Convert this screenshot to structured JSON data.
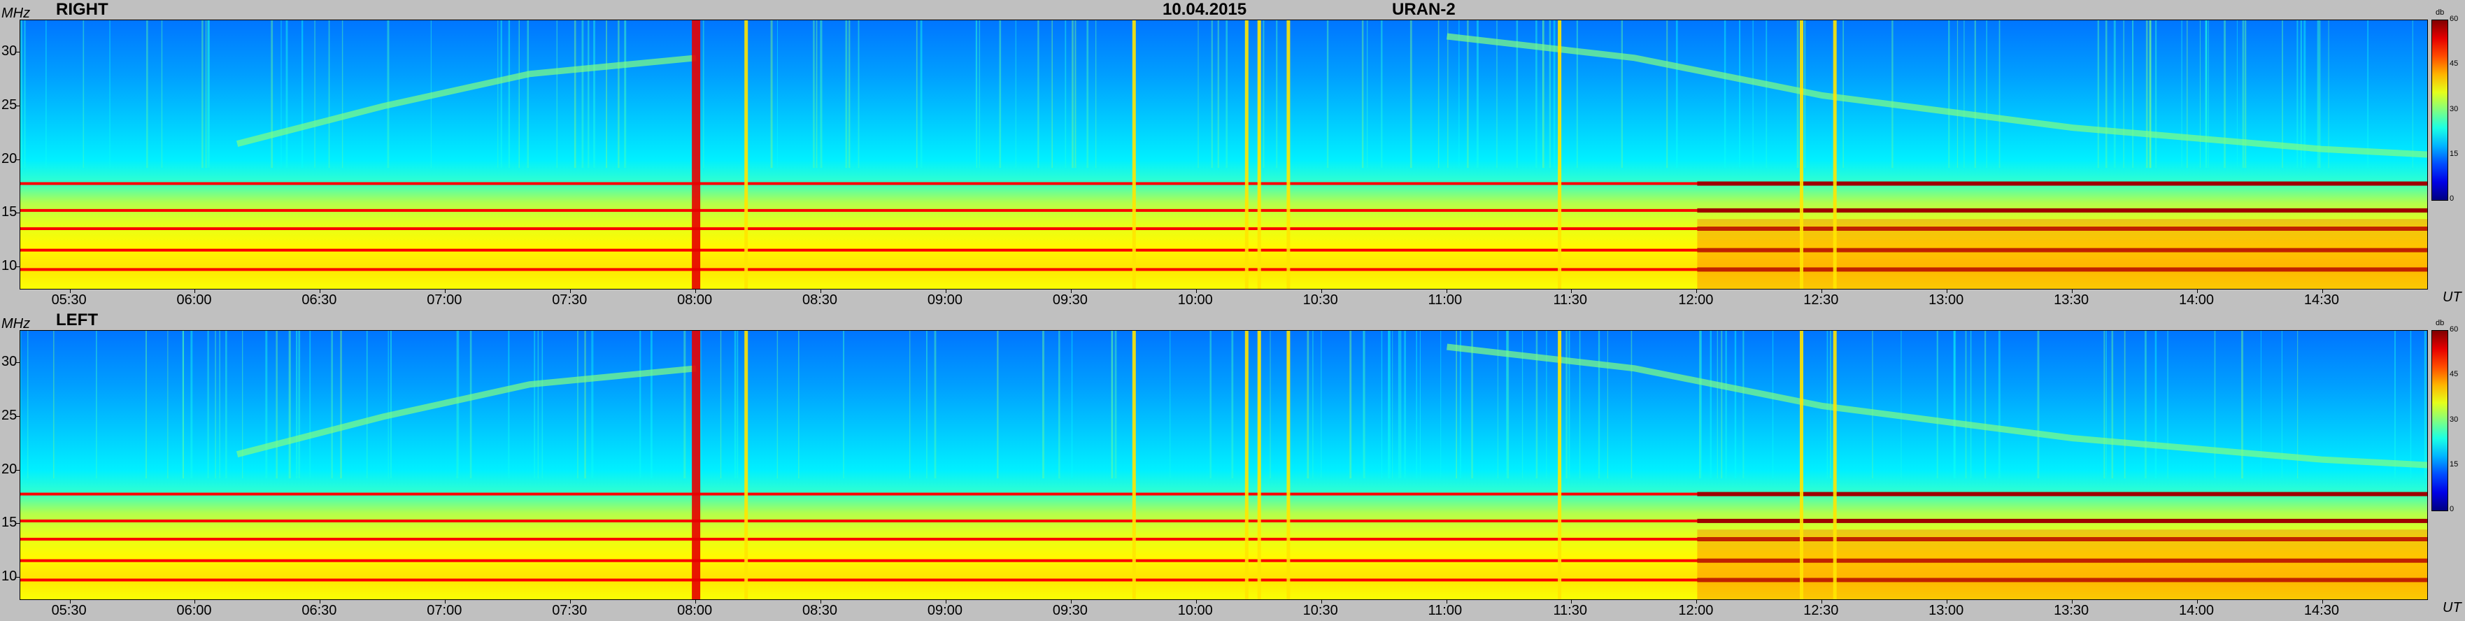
{
  "header": {
    "date": "10.04.2015",
    "station": "URAN-2"
  },
  "axes": {
    "y_unit": "MHz",
    "x_unit": "UT",
    "colorbar_unit": "db"
  },
  "chart_data": [
    {
      "type": "heatmap",
      "title": "RIGHT",
      "xlabel": "UT",
      "ylabel": "MHz",
      "x_range": [
        "05:18",
        "14:55"
      ],
      "x_ticks": [
        "05:30",
        "06:00",
        "06:30",
        "07:00",
        "07:30",
        "08:00",
        "08:30",
        "09:00",
        "09:30",
        "10:00",
        "10:30",
        "11:00",
        "11:30",
        "12:00",
        "12:30",
        "13:00",
        "13:30",
        "14:00",
        "14:30"
      ],
      "ylim": [
        8,
        33
      ],
      "y_ticks": [
        10,
        15,
        20,
        25,
        30
      ],
      "colorbar": {
        "label": "db",
        "range": [
          0,
          60
        ],
        "ticks": [
          0,
          15,
          30,
          45,
          60
        ]
      },
      "strong_bands_mhz": [
        9.8,
        11.6,
        13.6,
        15.3,
        17.8
      ],
      "bursts_ut": [
        "08:00",
        "08:12",
        "09:45",
        "10:12",
        "10:15",
        "10:22",
        "11:27",
        "12:25",
        "12:33"
      ]
    },
    {
      "type": "heatmap",
      "title": "LEFT",
      "xlabel": "UT",
      "ylabel": "MHz",
      "x_range": [
        "05:18",
        "14:55"
      ],
      "x_ticks": [
        "05:30",
        "06:00",
        "06:30",
        "07:00",
        "07:30",
        "08:00",
        "08:30",
        "09:00",
        "09:30",
        "10:00",
        "10:30",
        "11:00",
        "11:30",
        "12:00",
        "12:30",
        "13:00",
        "13:30",
        "14:00",
        "14:30"
      ],
      "ylim": [
        8,
        33
      ],
      "y_ticks": [
        10,
        15,
        20,
        25,
        30
      ],
      "colorbar": {
        "label": "db",
        "range": [
          0,
          60
        ],
        "ticks": [
          0,
          15,
          30,
          45,
          60
        ]
      },
      "strong_bands_mhz": [
        9.8,
        11.6,
        13.6,
        15.3,
        17.8
      ],
      "bursts_ut": [
        "08:00",
        "08:12",
        "09:45",
        "10:12",
        "10:15",
        "10:22",
        "11:27",
        "12:25",
        "12:33"
      ]
    }
  ]
}
